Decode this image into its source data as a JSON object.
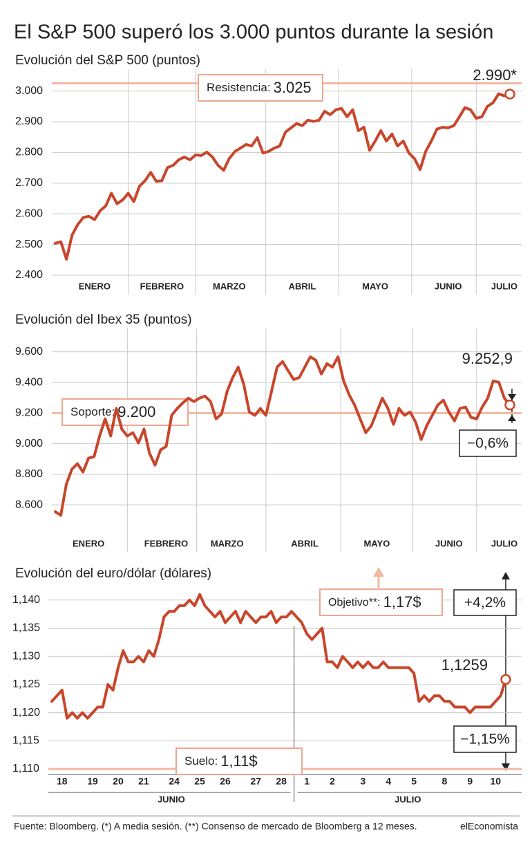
{
  "header": {
    "title": "El S&P 500 superó los 3.000 puntos durante la sesión"
  },
  "chart_data": [
    {
      "type": "line",
      "title": "Evolución del S&P 500 (puntos)",
      "color": "#c8462b",
      "reference_color": "#f2b8a2",
      "x_grid": true,
      "categories": [
        null,
        null,
        null,
        null,
        null,
        null,
        null,
        "ENERO",
        null,
        null,
        null,
        null,
        null,
        null,
        null,
        null,
        null,
        null,
        null,
        "FEBRERO",
        null,
        null,
        null,
        null,
        null,
        null,
        null,
        null,
        null,
        null,
        null,
        "MARZO",
        null,
        null,
        null,
        null,
        null,
        null,
        null,
        null,
        null,
        null,
        null,
        null,
        "ABRIL",
        null,
        null,
        null,
        null,
        null,
        null,
        null,
        null,
        null,
        null,
        null,
        null,
        "MAYO",
        null,
        null,
        null,
        null,
        null,
        null,
        null,
        null,
        null,
        null,
        null,
        null,
        "JUNIO",
        null,
        null,
        null,
        null,
        null,
        null,
        null,
        null,
        null,
        "JULIO",
        null
      ],
      "values": [
        2504,
        2509,
        2452,
        2531,
        2565,
        2588,
        2592,
        2581,
        2610,
        2626,
        2667,
        2633,
        2645,
        2667,
        2640,
        2690,
        2708,
        2735,
        2706,
        2708,
        2751,
        2758,
        2776,
        2785,
        2776,
        2792,
        2790,
        2801,
        2785,
        2758,
        2742,
        2780,
        2803,
        2814,
        2826,
        2821,
        2848,
        2798,
        2803,
        2814,
        2821,
        2866,
        2880,
        2894,
        2887,
        2905,
        2901,
        2905,
        2934,
        2923,
        2939,
        2943,
        2916,
        2939,
        2871,
        2882,
        2807,
        2837,
        2871,
        2837,
        2860,
        2821,
        2837,
        2798,
        2780,
        2744,
        2803,
        2837,
        2876,
        2882,
        2880,
        2887,
        2916,
        2946,
        2939,
        2911,
        2916,
        2950,
        2962,
        2991,
        2984,
        2990
      ],
      "ylim": [
        2400,
        3060
      ],
      "yticks": [
        {
          "value": 2400,
          "label": "2.400"
        },
        {
          "value": 2500,
          "label": "2.500"
        },
        {
          "value": 2600,
          "label": "2.600"
        },
        {
          "value": 2700,
          "label": "2.700"
        },
        {
          "value": 2800,
          "label": "2.800"
        },
        {
          "value": 2900,
          "label": "2.900"
        },
        {
          "value": 3000,
          "label": "3.000"
        }
      ],
      "reference_line": {
        "label": "Resistencia:",
        "value": 3025,
        "value_label": "3.025"
      },
      "last_value_label": "2.990*"
    },
    {
      "type": "line",
      "title": "Evolución del Ibex 35 (puntos)",
      "color": "#c8462b",
      "reference_color": "#f2b8a2",
      "x_grid": true,
      "categories": [
        null,
        null,
        null,
        null,
        null,
        null,
        "ENERO",
        null,
        null,
        null,
        null,
        null,
        null,
        null,
        null,
        null,
        null,
        null,
        null,
        null,
        "FEBRERO",
        null,
        null,
        null,
        null,
        null,
        null,
        null,
        null,
        null,
        null,
        "MARZO",
        null,
        null,
        null,
        null,
        null,
        null,
        null,
        null,
        null,
        null,
        null,
        null,
        null,
        "ABRIL",
        null,
        null,
        null,
        null,
        null,
        null,
        null,
        null,
        null,
        null,
        null,
        null,
        "MAYO",
        null,
        null,
        null,
        null,
        null,
        null,
        null,
        null,
        null,
        null,
        null,
        null,
        "JUNIO",
        null,
        null,
        null,
        null,
        null,
        null,
        null,
        null,
        null,
        "JULIO",
        null
      ],
      "values": [
        8555,
        8532,
        8735,
        8834,
        8869,
        8815,
        8905,
        8915,
        9050,
        9162,
        9050,
        9230,
        9095,
        9050,
        9072,
        9005,
        9095,
        8937,
        8860,
        8960,
        8982,
        9185,
        9230,
        9266,
        9297,
        9275,
        9297,
        9311,
        9275,
        9162,
        9194,
        9342,
        9432,
        9500,
        9387,
        9207,
        9185,
        9230,
        9185,
        9342,
        9500,
        9536,
        9477,
        9419,
        9432,
        9500,
        9567,
        9545,
        9455,
        9522,
        9500,
        9567,
        9410,
        9320,
        9252,
        9162,
        9072,
        9117,
        9207,
        9297,
        9230,
        9126,
        9230,
        9185,
        9207,
        9140,
        9027,
        9117,
        9185,
        9252,
        9284,
        9207,
        9149,
        9230,
        9239,
        9171,
        9162,
        9239,
        9297,
        9410,
        9401,
        9297,
        9252.9
      ],
      "ylim": [
        8420,
        9730
      ],
      "yticks": [
        {
          "value": 8600,
          "label": "8.600"
        },
        {
          "value": 8800,
          "label": "8.800"
        },
        {
          "value": 9000,
          "label": "9.000"
        },
        {
          "value": 9200,
          "label": "9.200"
        },
        {
          "value": 9400,
          "label": "9.400"
        },
        {
          "value": 9600,
          "label": "9.600"
        }
      ],
      "reference_line": {
        "label": "Soporte:",
        "value": 9200,
        "value_label": "9.200"
      },
      "last_value_label": "9.252,9",
      "changes": [
        "−0,6%"
      ]
    },
    {
      "type": "line",
      "title": "Evolución del euro/dólar (dólares)",
      "color": "#c8462b",
      "reference_color": "#f2b8a2",
      "x_grid": false,
      "categories": [
        null,
        null,
        "18",
        null,
        null,
        null,
        null,
        null,
        "19",
        null,
        null,
        null,
        null,
        "20",
        null,
        null,
        null,
        null,
        "21",
        null,
        null,
        null,
        null,
        null,
        "24",
        null,
        null,
        null,
        null,
        "25",
        null,
        null,
        null,
        null,
        "26",
        null,
        null,
        null,
        null,
        null,
        "27",
        null,
        null,
        null,
        null,
        "28",
        null,
        null,
        null,
        null,
        "1",
        null,
        null,
        null,
        null,
        "2",
        null,
        null,
        null,
        null,
        null,
        "3",
        null,
        null,
        null,
        null,
        "4",
        null,
        null,
        null,
        null,
        "5",
        null,
        null,
        null,
        null,
        null,
        "8",
        null,
        null,
        null,
        null,
        "9",
        null,
        null,
        null,
        null,
        "10",
        null,
        null
      ],
      "x_groups": [
        "JUNIO",
        "JULIO"
      ],
      "values": [
        1.122,
        1.123,
        1.124,
        1.119,
        1.12,
        1.119,
        1.12,
        1.119,
        1.12,
        1.121,
        1.121,
        1.125,
        1.124,
        1.128,
        1.131,
        1.129,
        1.129,
        1.13,
        1.129,
        1.131,
        1.13,
        1.133,
        1.137,
        1.138,
        1.138,
        1.139,
        1.139,
        1.14,
        1.139,
        1.141,
        1.139,
        1.138,
        1.137,
        1.138,
        1.136,
        1.137,
        1.138,
        1.136,
        1.138,
        1.137,
        1.136,
        1.137,
        1.137,
        1.138,
        1.136,
        1.137,
        1.137,
        1.138,
        1.137,
        1.136,
        1.134,
        1.133,
        1.134,
        1.135,
        1.129,
        1.129,
        1.128,
        1.13,
        1.129,
        1.128,
        1.129,
        1.128,
        1.129,
        1.128,
        1.128,
        1.129,
        1.128,
        1.128,
        1.128,
        1.128,
        1.128,
        1.127,
        1.122,
        1.123,
        1.122,
        1.123,
        1.123,
        1.122,
        1.122,
        1.121,
        1.121,
        1.121,
        1.12,
        1.121,
        1.121,
        1.121,
        1.121,
        1.122,
        1.123,
        1.1259
      ],
      "ylim": [
        1.11,
        1.1428
      ],
      "yticks": [
        {
          "value": 1.11,
          "label": "1,110"
        },
        {
          "value": 1.115,
          "label": "1,115"
        },
        {
          "value": 1.12,
          "label": "1,120"
        },
        {
          "value": 1.125,
          "label": "1,125"
        },
        {
          "value": 1.13,
          "label": "1,130"
        },
        {
          "value": 1.135,
          "label": "1,135"
        },
        {
          "value": 1.14,
          "label": "1,140"
        }
      ],
      "reference_line": {
        "label": "Suelo:",
        "value": 1.11,
        "value_label": "1,11$"
      },
      "target": {
        "label": "Objetivo**:",
        "value": 1.17,
        "value_label": "1,17$"
      },
      "last_value_label": "1,1259",
      "changes": [
        "+4,2%",
        "−1,15%"
      ]
    }
  ],
  "footer": {
    "source": "Fuente: Bloomberg. (*) A media sesión. (**) Consenso de mercado de Bloomberg a 12 meses.",
    "brand": "elEconomista"
  }
}
